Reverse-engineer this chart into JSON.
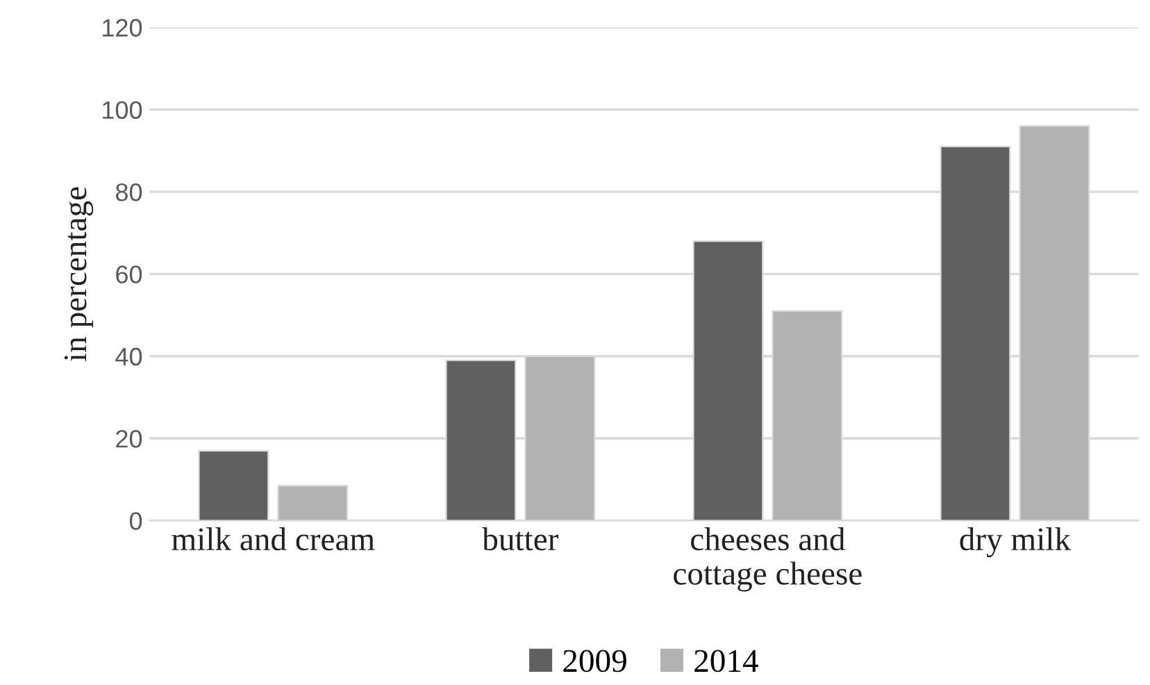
{
  "chart_data": {
    "type": "bar",
    "ylabel": "in percentage",
    "categories": [
      "milk and cream",
      "butter",
      "cheeses and\ncottage cheese",
      "dry milk"
    ],
    "series": [
      {
        "name": "2009",
        "color": "#606060",
        "values": [
          17,
          39,
          68,
          91
        ]
      },
      {
        "name": "2014",
        "color": "#b2b2b2",
        "values": [
          8.5,
          40,
          51,
          96
        ]
      }
    ],
    "ylim": [
      0,
      120
    ],
    "yticks": [
      0,
      20,
      40,
      60,
      80,
      100,
      120
    ],
    "grid": "y",
    "legend": "bottom"
  }
}
